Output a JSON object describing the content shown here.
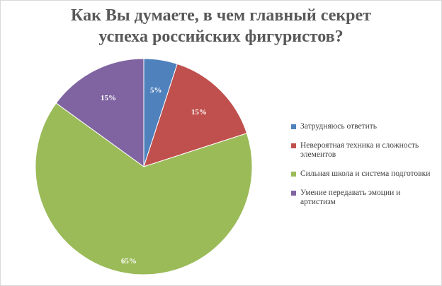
{
  "chart_data": {
    "type": "pie",
    "title_lines": [
      "Как Вы думаете, в чем главный секрет",
      "успеха российских фигуристов?"
    ],
    "categories": [
      "Затрудняюсь ответить",
      "Невероятная техника и сложность элементов",
      "Сильная школа и система подготовки",
      "Умение передавать эмоции и артистизм"
    ],
    "values": [
      5,
      15,
      65,
      15
    ],
    "data_labels": [
      "5%",
      "15%",
      "65%",
      "15%"
    ],
    "colors": [
      "#4f81bd",
      "#c0504d",
      "#9bbb59",
      "#8064a2"
    ],
    "legend_position": "right"
  }
}
